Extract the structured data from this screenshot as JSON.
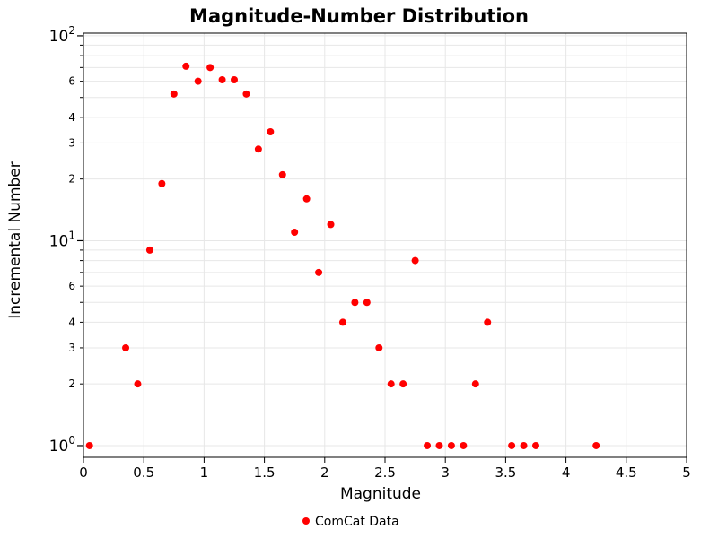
{
  "chart_data": {
    "type": "scatter",
    "title": "Magnitude-Number Distribution",
    "xlabel": "Magnitude",
    "ylabel": "Incremental Number",
    "xlim": [
      0,
      5
    ],
    "ylim": [
      0.877,
      103
    ],
    "y_scale": "log",
    "grid": true,
    "colors": {
      "grid": "#e7e7e7",
      "axis": "#000000",
      "tick_text": "#000000"
    },
    "x_ticks": [
      {
        "value": 0,
        "label": "0"
      },
      {
        "value": 0.5,
        "label": "0.5"
      },
      {
        "value": 1,
        "label": "1"
      },
      {
        "value": 1.5,
        "label": "1.5"
      },
      {
        "value": 2,
        "label": "2"
      },
      {
        "value": 2.5,
        "label": "2.5"
      },
      {
        "value": 3,
        "label": "3"
      },
      {
        "value": 3.5,
        "label": "3.5"
      },
      {
        "value": 4,
        "label": "4"
      },
      {
        "value": 4.5,
        "label": "4.5"
      },
      {
        "value": 5,
        "label": "5"
      }
    ],
    "y_ticks": {
      "major": [
        {
          "value": 1,
          "base": "10",
          "exp": "0"
        },
        {
          "value": 10,
          "base": "10",
          "exp": "1"
        },
        {
          "value": 100,
          "base": "10",
          "exp": "2"
        }
      ],
      "minor_labeled": [
        {
          "value": 2,
          "label": "2"
        },
        {
          "value": 3,
          "label": "3"
        },
        {
          "value": 4,
          "label": "4"
        },
        {
          "value": 6,
          "label": "6"
        },
        {
          "value": 20,
          "label": "2"
        },
        {
          "value": 30,
          "label": "3"
        },
        {
          "value": 40,
          "label": "4"
        },
        {
          "value": 60,
          "label": "6"
        }
      ],
      "minor_unlabeled": [
        5,
        7,
        8,
        9,
        50,
        70,
        80,
        90
      ]
    },
    "legend": {
      "position": "bottom-center"
    },
    "series": [
      {
        "name": "ComCat Data",
        "color": "#ff0000",
        "marker": "circle",
        "x": [
          0.05,
          0.35,
          0.45,
          0.55,
          0.65,
          0.75,
          0.85,
          0.95,
          1.05,
          1.15,
          1.25,
          1.35,
          1.45,
          1.55,
          1.65,
          1.75,
          1.85,
          1.95,
          2.05,
          2.15,
          2.25,
          2.35,
          2.45,
          2.55,
          2.65,
          2.75,
          2.85,
          2.95,
          3.05,
          3.15,
          3.25,
          3.35,
          3.55,
          3.65,
          3.75,
          4.25
        ],
        "y": [
          1,
          3,
          2,
          9,
          19,
          52,
          71,
          60,
          70,
          61,
          61,
          52,
          28,
          34,
          21,
          11,
          16,
          7,
          12,
          4,
          5,
          5,
          3,
          2,
          2,
          8,
          1,
          1,
          1,
          1,
          2,
          4,
          1,
          1,
          1,
          1
        ]
      }
    ]
  }
}
